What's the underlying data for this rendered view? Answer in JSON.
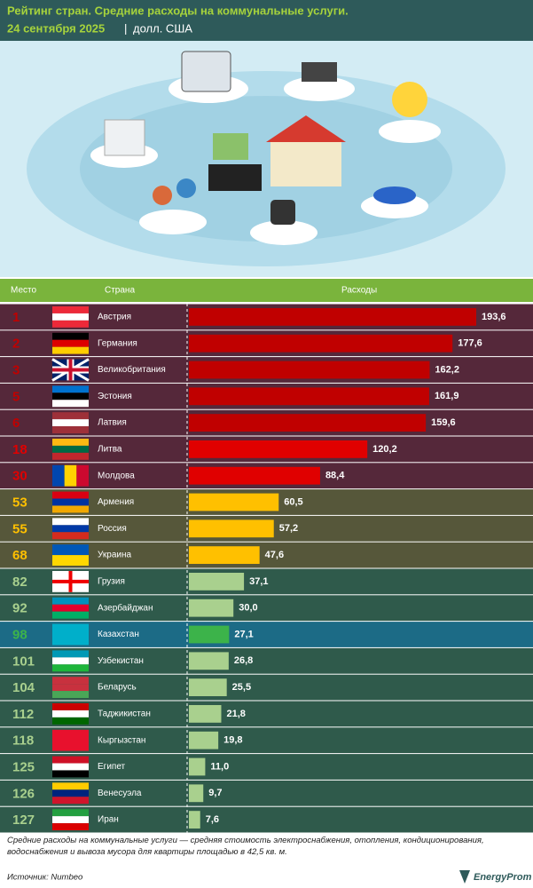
{
  "chart_data": {
    "type": "bar",
    "orientation": "horizontal",
    "title": "Рейтинг стран. Средние расходы на коммунальные услуги.",
    "subtitle": "24 сентября 2025",
    "unit": "долл. США",
    "column_headers": [
      "Место",
      "Страна",
      "Расходы"
    ],
    "ranks": [
      1,
      2,
      3,
      5,
      6,
      18,
      30,
      53,
      55,
      68,
      82,
      92,
      98,
      101,
      104,
      112,
      118,
      125,
      126,
      127
    ],
    "categories": [
      "Австрия",
      "Германия",
      "Великобритания",
      "Эстония",
      "Латвия",
      "Литва",
      "Молдова",
      "Армения",
      "Россия",
      "Украина",
      "Грузия",
      "Азербайджан",
      "Казахстан",
      "Узбекистан",
      "Беларусь",
      "Таджикистан",
      "Кыргызстан",
      "Египет",
      "Венесуэла",
      "Иран"
    ],
    "values": [
      193.6,
      177.6,
      162.2,
      161.9,
      159.6,
      120.2,
      88.4,
      60.5,
      57.2,
      47.6,
      37.1,
      30.0,
      27.1,
      26.8,
      25.5,
      21.8,
      19.8,
      11.0,
      9.7,
      7.6
    ],
    "value_labels": [
      "193,6",
      "177,6",
      "162,2",
      "161,9",
      "159,6",
      "120,2",
      "88,4",
      "60,5",
      "57,2",
      "47,6",
      "37,1",
      "30,0",
      "27,1",
      "26,8",
      "25,5",
      "21,8",
      "19,8",
      "11,0",
      "9,7",
      "7,6"
    ],
    "bar_colors": [
      "#c00000",
      "#c00000",
      "#c00000",
      "#c00000",
      "#c00000",
      "#e00000",
      "#e00000",
      "#ffc000",
      "#ffc000",
      "#ffc000",
      "#a9d08e",
      "#a9d08e",
      "#3cb34a",
      "#a9d08e",
      "#a9d08e",
      "#a9d08e",
      "#a9d08e",
      "#a9d08e",
      "#a9d08e",
      "#a9d08e"
    ],
    "row_colors": [
      "#55283a",
      "#55283a",
      "#55283a",
      "#55283a",
      "#55283a",
      "#55283a",
      "#55283a",
      "#56573a",
      "#56573a",
      "#56573a",
      "#2f5a4b",
      "#2f5a4b",
      "#1c6b86",
      "#2f5a4b",
      "#2f5a4b",
      "#2f5a4b",
      "#2f5a4b",
      "#2f5a4b",
      "#2f5a4b",
      "#2f5a4b"
    ],
    "footnote": "Средние расходы на коммунальные услуги — средняя стоимость электроснабжения, отопления, кондиционирования, водоснабжения и вывоза мусора для квартиры площадью в 42,5 кв. м.",
    "source": "Источник: Numbeo",
    "logo": "EnergyProm"
  }
}
